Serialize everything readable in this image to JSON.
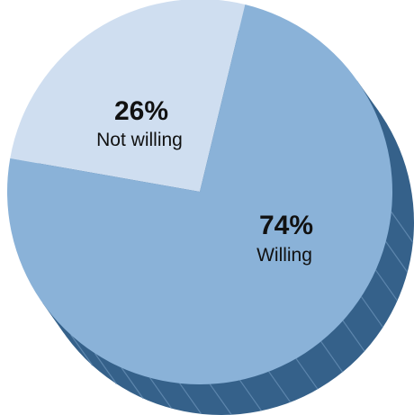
{
  "chart_data": {
    "type": "pie",
    "style": "3d",
    "slices": [
      {
        "label": "Not willing",
        "value": 26,
        "value_label": "26%",
        "color": "#cfdef0"
      },
      {
        "label": "Willing",
        "value": 74,
        "value_label": "74%",
        "color": "#8ab2d8"
      }
    ],
    "side_color": "#35618a",
    "side_line_color": "#5d86ad",
    "legend": "none"
  }
}
